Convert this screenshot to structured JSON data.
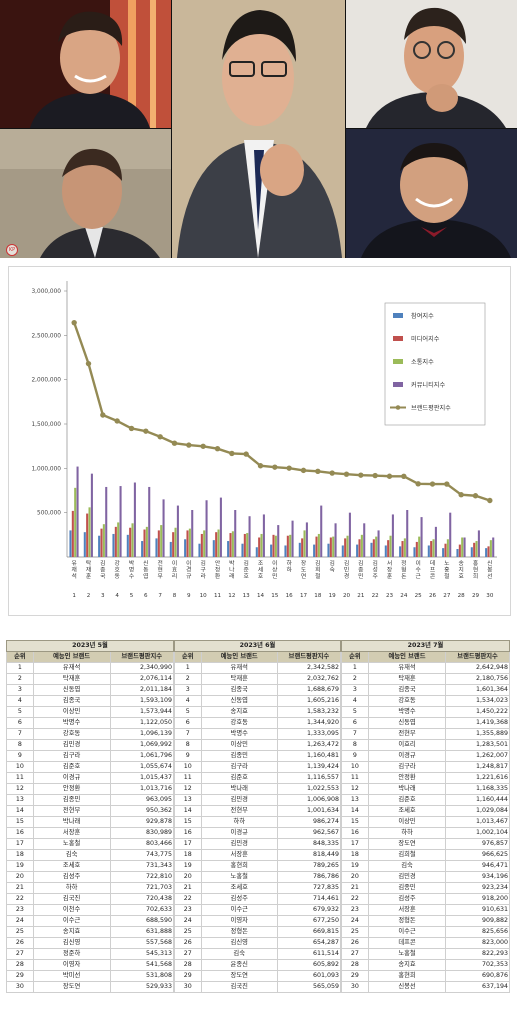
{
  "watermark": "KP",
  "photos": [
    {
      "name": "photo-top-left",
      "alt": "portrait"
    },
    {
      "name": "photo-bottom-left",
      "alt": "portrait"
    },
    {
      "name": "photo-center",
      "alt": "portrait"
    },
    {
      "name": "photo-top-right",
      "alt": "portrait"
    },
    {
      "name": "photo-bottom-right",
      "alt": "portrait"
    }
  ],
  "chart_data": {
    "type": "bar",
    "categories": [
      "유재석",
      "탁재훈",
      "김종국",
      "강호동",
      "박명수",
      "신동엽",
      "전현무",
      "이효리",
      "이경규",
      "김구라",
      "안정환",
      "박나래",
      "김준호",
      "조세호",
      "이상민",
      "하하",
      "장도연",
      "김희철",
      "김숙",
      "김민경",
      "김종민",
      "김성주",
      "서장훈",
      "정형돈",
      "이수근",
      "데프콘",
      "노홍철",
      "송지효",
      "홍현희",
      "신봉선"
    ],
    "index_labels": [
      "1",
      "2",
      "3",
      "4",
      "5",
      "6",
      "7",
      "8",
      "9",
      "10",
      "11",
      "12",
      "13",
      "14",
      "15",
      "16",
      "17",
      "18",
      "19",
      "20",
      "21",
      "22",
      "23",
      "24",
      "25",
      "26",
      "27",
      "28",
      "29",
      "30"
    ],
    "yticks": [
      "3,000,000",
      "2,500,000",
      "2,000,000",
      "1,500,000",
      "1,000,000",
      "500,000"
    ],
    "ylim": [
      0,
      3000000
    ],
    "legend_position": "right",
    "series": [
      {
        "name": "참여지수",
        "color": "#4f81bd",
        "kind": "bar",
        "values": [
          300000,
          280000,
          240000,
          260000,
          250000,
          180000,
          210000,
          170000,
          200000,
          150000,
          190000,
          180000,
          150000,
          110000,
          140000,
          130000,
          160000,
          140000,
          150000,
          130000,
          140000,
          160000,
          130000,
          120000,
          110000,
          130000,
          100000,
          90000,
          110000,
          100000
        ]
      },
      {
        "name": "미디어지수",
        "color": "#c0504d",
        "kind": "bar",
        "values": [
          520000,
          490000,
          320000,
          340000,
          330000,
          310000,
          300000,
          280000,
          300000,
          260000,
          280000,
          270000,
          260000,
          220000,
          250000,
          240000,
          210000,
          230000,
          220000,
          210000,
          200000,
          200000,
          190000,
          180000,
          170000,
          180000,
          150000,
          140000,
          160000,
          120000
        ]
      },
      {
        "name": "소통지수",
        "color": "#9bbb59",
        "kind": "bar",
        "values": [
          780000,
          560000,
          370000,
          390000,
          380000,
          340000,
          360000,
          330000,
          320000,
          300000,
          310000,
          290000,
          270000,
          260000,
          240000,
          250000,
          300000,
          260000,
          230000,
          240000,
          250000,
          230000,
          240000,
          210000,
          230000,
          200000,
          200000,
          220000,
          180000,
          190000
        ]
      },
      {
        "name": "커뮤니티지수",
        "color": "#8064a2",
        "kind": "bar",
        "values": [
          1020000,
          940000,
          790000,
          800000,
          840000,
          790000,
          650000,
          580000,
          530000,
          640000,
          670000,
          530000,
          460000,
          480000,
          360000,
          410000,
          390000,
          580000,
          380000,
          500000,
          380000,
          300000,
          480000,
          530000,
          450000,
          340000,
          500000,
          220000,
          300000,
          220000
        ]
      },
      {
        "name": "브랜드평판지수",
        "color": "#948a54",
        "kind": "line",
        "values": [
          2642948,
          2180756,
          1601364,
          1534023,
          1450222,
          1419368,
          1355889,
          1283501,
          1262007,
          1248817,
          1221616,
          1168335,
          1160444,
          1029084,
          1013467,
          1002104,
          976857,
          966625,
          946471,
          934196,
          923234,
          918200,
          910631,
          909882,
          825656,
          823000,
          822293,
          702353,
          690876,
          637194
        ]
      }
    ]
  },
  "tables": [
    {
      "month": "2023년 5월",
      "headers": [
        "순위",
        "예능인 브랜드",
        "브랜드평판지수"
      ],
      "rows": [
        [
          "1",
          "유재석",
          "2,340,990"
        ],
        [
          "2",
          "탁재훈",
          "2,076,114"
        ],
        [
          "3",
          "신동엽",
          "2,011,184"
        ],
        [
          "4",
          "김종국",
          "1,593,109"
        ],
        [
          "5",
          "이상민",
          "1,573,944"
        ],
        [
          "6",
          "박명수",
          "1,122,050"
        ],
        [
          "7",
          "강호동",
          "1,096,139"
        ],
        [
          "8",
          "김민경",
          "1,069,992"
        ],
        [
          "9",
          "김구라",
          "1,061,796"
        ],
        [
          "10",
          "김준호",
          "1,055,674"
        ],
        [
          "11",
          "이경규",
          "1,015,437"
        ],
        [
          "12",
          "안정환",
          "1,013,716"
        ],
        [
          "13",
          "김종민",
          "963,095"
        ],
        [
          "14",
          "전현무",
          "950,362"
        ],
        [
          "15",
          "박나래",
          "929,878"
        ],
        [
          "16",
          "서장훈",
          "830,989"
        ],
        [
          "17",
          "노홍철",
          "803,466"
        ],
        [
          "18",
          "김숙",
          "743,775"
        ],
        [
          "19",
          "조세호",
          "731,343"
        ],
        [
          "20",
          "김성주",
          "722,810"
        ],
        [
          "21",
          "하하",
          "721,703"
        ],
        [
          "22",
          "김국진",
          "720,438"
        ],
        [
          "23",
          "이천수",
          "702,633"
        ],
        [
          "24",
          "이수근",
          "688,590"
        ],
        [
          "25",
          "송지효",
          "631,888"
        ],
        [
          "26",
          "김신영",
          "557,568"
        ],
        [
          "27",
          "정준하",
          "545,313"
        ],
        [
          "28",
          "이영자",
          "541,568"
        ],
        [
          "29",
          "박미선",
          "531,808"
        ],
        [
          "30",
          "장도연",
          "529,933"
        ]
      ]
    },
    {
      "month": "2023년 6월",
      "headers": [
        "순위",
        "예능인 브랜드",
        "브랜드평판지수"
      ],
      "rows": [
        [
          "1",
          "유재석",
          "2,342,582"
        ],
        [
          "2",
          "탁재훈",
          "2,032,762"
        ],
        [
          "3",
          "김종국",
          "1,688,679"
        ],
        [
          "4",
          "신동엽",
          "1,605,216"
        ],
        [
          "5",
          "송지효",
          "1,583,232"
        ],
        [
          "6",
          "강호동",
          "1,344,920"
        ],
        [
          "7",
          "박명수",
          "1,333,095"
        ],
        [
          "8",
          "이상민",
          "1,263,472"
        ],
        [
          "9",
          "김종민",
          "1,160,481"
        ],
        [
          "10",
          "김구라",
          "1,139,424"
        ],
        [
          "11",
          "김준호",
          "1,116,557"
        ],
        [
          "12",
          "박나래",
          "1,022,553"
        ],
        [
          "13",
          "김민경",
          "1,006,908"
        ],
        [
          "14",
          "전현무",
          "1,001,634"
        ],
        [
          "15",
          "하하",
          "986,274"
        ],
        [
          "16",
          "이경규",
          "962,567"
        ],
        [
          "17",
          "김민경",
          "848,335"
        ],
        [
          "18",
          "서장훈",
          "818,449"
        ],
        [
          "19",
          "홍현희",
          "789,265"
        ],
        [
          "20",
          "노홍철",
          "786,786"
        ],
        [
          "21",
          "조세호",
          "727,835"
        ],
        [
          "22",
          "김성주",
          "714,461"
        ],
        [
          "23",
          "이수근",
          "679,932"
        ],
        [
          "24",
          "이영자",
          "677,250"
        ],
        [
          "25",
          "정형돈",
          "669,815"
        ],
        [
          "26",
          "김신영",
          "654,287"
        ],
        [
          "27",
          "김숙",
          "611,514"
        ],
        [
          "28",
          "윤종신",
          "605,892"
        ],
        [
          "29",
          "장도연",
          "601,093"
        ],
        [
          "30",
          "김국진",
          "565,059"
        ]
      ]
    },
    {
      "month": "2023년 7월",
      "headers": [
        "순위",
        "예능인 브랜드",
        "브랜드평판지수"
      ],
      "rows": [
        [
          "1",
          "유재석",
          "2,642,948"
        ],
        [
          "2",
          "탁재훈",
          "2,180,756"
        ],
        [
          "3",
          "김종국",
          "1,601,364"
        ],
        [
          "4",
          "강호동",
          "1,534,023"
        ],
        [
          "5",
          "박명수",
          "1,450,222"
        ],
        [
          "6",
          "신동엽",
          "1,419,368"
        ],
        [
          "7",
          "전현무",
          "1,355,889"
        ],
        [
          "8",
          "이효리",
          "1,283,501"
        ],
        [
          "9",
          "이경규",
          "1,262,007"
        ],
        [
          "10",
          "김구라",
          "1,248,817"
        ],
        [
          "11",
          "안정환",
          "1,221,616"
        ],
        [
          "12",
          "박나래",
          "1,168,335"
        ],
        [
          "13",
          "김준호",
          "1,160,444"
        ],
        [
          "14",
          "조세호",
          "1,029,084"
        ],
        [
          "15",
          "이상민",
          "1,013,467"
        ],
        [
          "16",
          "하하",
          "1,002,104"
        ],
        [
          "17",
          "장도연",
          "976,857"
        ],
        [
          "18",
          "김희철",
          "966,625"
        ],
        [
          "19",
          "김숙",
          "946,471"
        ],
        [
          "20",
          "김민경",
          "934,196"
        ],
        [
          "21",
          "김종민",
          "923,234"
        ],
        [
          "22",
          "김성주",
          "918,200"
        ],
        [
          "23",
          "서장훈",
          "910,631"
        ],
        [
          "24",
          "정형돈",
          "909,882"
        ],
        [
          "25",
          "이수근",
          "825,656"
        ],
        [
          "26",
          "데프콘",
          "823,000"
        ],
        [
          "27",
          "노홍철",
          "822,293"
        ],
        [
          "28",
          "송지효",
          "702,353"
        ],
        [
          "29",
          "홍현희",
          "690,876"
        ],
        [
          "30",
          "신봉선",
          "637,194"
        ]
      ]
    }
  ]
}
